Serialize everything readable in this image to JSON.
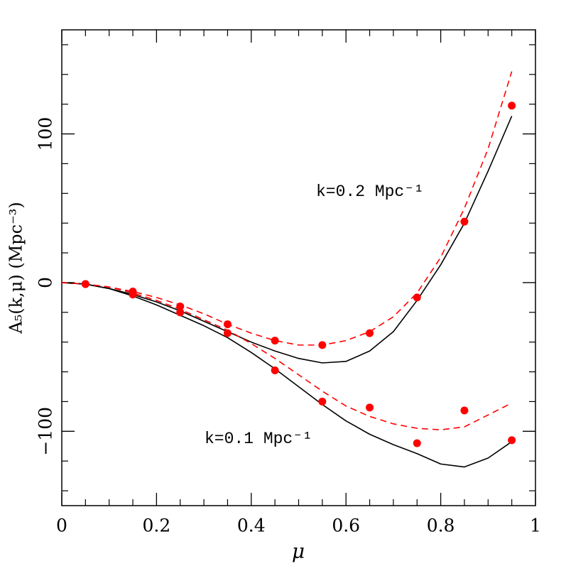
{
  "chart_data": {
    "type": "line",
    "xlabel": "μ",
    "ylabel": "A₅(k,μ)  (Mpc⁻³)",
    "annotations": [
      "k=0.2 Mpc⁻¹",
      "k=0.1 Mpc⁻¹"
    ],
    "xlim": [
      0,
      1
    ],
    "ylim": [
      -150,
      170
    ],
    "xticks": [
      0,
      0.2,
      0.4,
      0.6,
      0.8,
      1
    ],
    "yticks": [
      {
        "value": -100,
        "label": "−100"
      },
      0,
      100
    ],
    "xminorticks": [
      0.05,
      0.1,
      0.15,
      0.25,
      0.3,
      0.35,
      0.45,
      0.5,
      0.55,
      0.65,
      0.7,
      0.75,
      0.85,
      0.9,
      0.95
    ],
    "yminorticks": [
      -140,
      -120,
      -80,
      -60,
      -40,
      -20,
      20,
      40,
      60,
      80,
      120,
      140,
      160
    ],
    "series": [
      {
        "color": "#000000",
        "style": "solid",
        "x": [
          0,
          0.05,
          0.1,
          0.15,
          0.2,
          0.25,
          0.3,
          0.35,
          0.4,
          0.45,
          0.5,
          0.55,
          0.6,
          0.65,
          0.7,
          0.75,
          0.8,
          0.85,
          0.9,
          0.95
        ],
        "values": [
          0,
          -1,
          -4,
          -8,
          -13,
          -19,
          -26,
          -33,
          -40,
          -46,
          -51,
          -54,
          -53,
          -46,
          -33,
          -12,
          12,
          40,
          75,
          112
        ]
      },
      {
        "color": "#ff0000",
        "style": "dashed",
        "x": [
          0,
          0.05,
          0.1,
          0.15,
          0.2,
          0.25,
          0.3,
          0.35,
          0.4,
          0.45,
          0.5,
          0.55,
          0.6,
          0.65,
          0.7,
          0.75,
          0.8,
          0.85,
          0.9,
          0.95
        ],
        "values": [
          0,
          -1,
          -3,
          -6,
          -10,
          -15,
          -21,
          -28,
          -34,
          -39,
          -42,
          -42,
          -39,
          -33,
          -23,
          -7,
          17,
          50,
          90,
          142
        ]
      },
      {
        "color": "#000000",
        "style": "solid",
        "x": [
          0,
          0.05,
          0.1,
          0.15,
          0.2,
          0.25,
          0.3,
          0.35,
          0.4,
          0.45,
          0.5,
          0.55,
          0.6,
          0.65,
          0.7,
          0.75,
          0.8,
          0.85,
          0.9,
          0.95
        ],
        "values": [
          0,
          -1,
          -4,
          -9,
          -15,
          -22,
          -29,
          -37,
          -47,
          -58,
          -70,
          -82,
          -93,
          -102,
          -109,
          -115,
          -122,
          -124,
          -118,
          -107
        ]
      },
      {
        "color": "#ff0000",
        "style": "dashed",
        "x": [
          0,
          0.05,
          0.1,
          0.15,
          0.2,
          0.25,
          0.3,
          0.35,
          0.4,
          0.45,
          0.5,
          0.55,
          0.6,
          0.65,
          0.7,
          0.75,
          0.8,
          0.85,
          0.9,
          0.95
        ],
        "values": [
          0,
          -1,
          -3,
          -7,
          -12,
          -18,
          -25,
          -32,
          -41,
          -51,
          -62,
          -73,
          -83,
          -90,
          -95,
          -98,
          -99,
          -97,
          -89,
          -81
        ]
      },
      {
        "color": "#ff0000",
        "style": "markers",
        "x": [
          0.05,
          0.15,
          0.25,
          0.35,
          0.45,
          0.55,
          0.65,
          0.75,
          0.85,
          0.95
        ],
        "values": [
          -1,
          -6,
          -16,
          -28,
          -39,
          -42,
          -34,
          -10,
          41,
          119
        ]
      },
      {
        "color": "#ff0000",
        "style": "markers",
        "x": [
          0.05,
          0.15,
          0.25,
          0.35,
          0.45,
          0.55,
          0.65,
          0.75,
          0.85,
          0.95
        ],
        "values": [
          -1,
          -8,
          -20,
          -34,
          -59,
          -80,
          -84,
          -108,
          -86,
          -106
        ]
      }
    ]
  }
}
